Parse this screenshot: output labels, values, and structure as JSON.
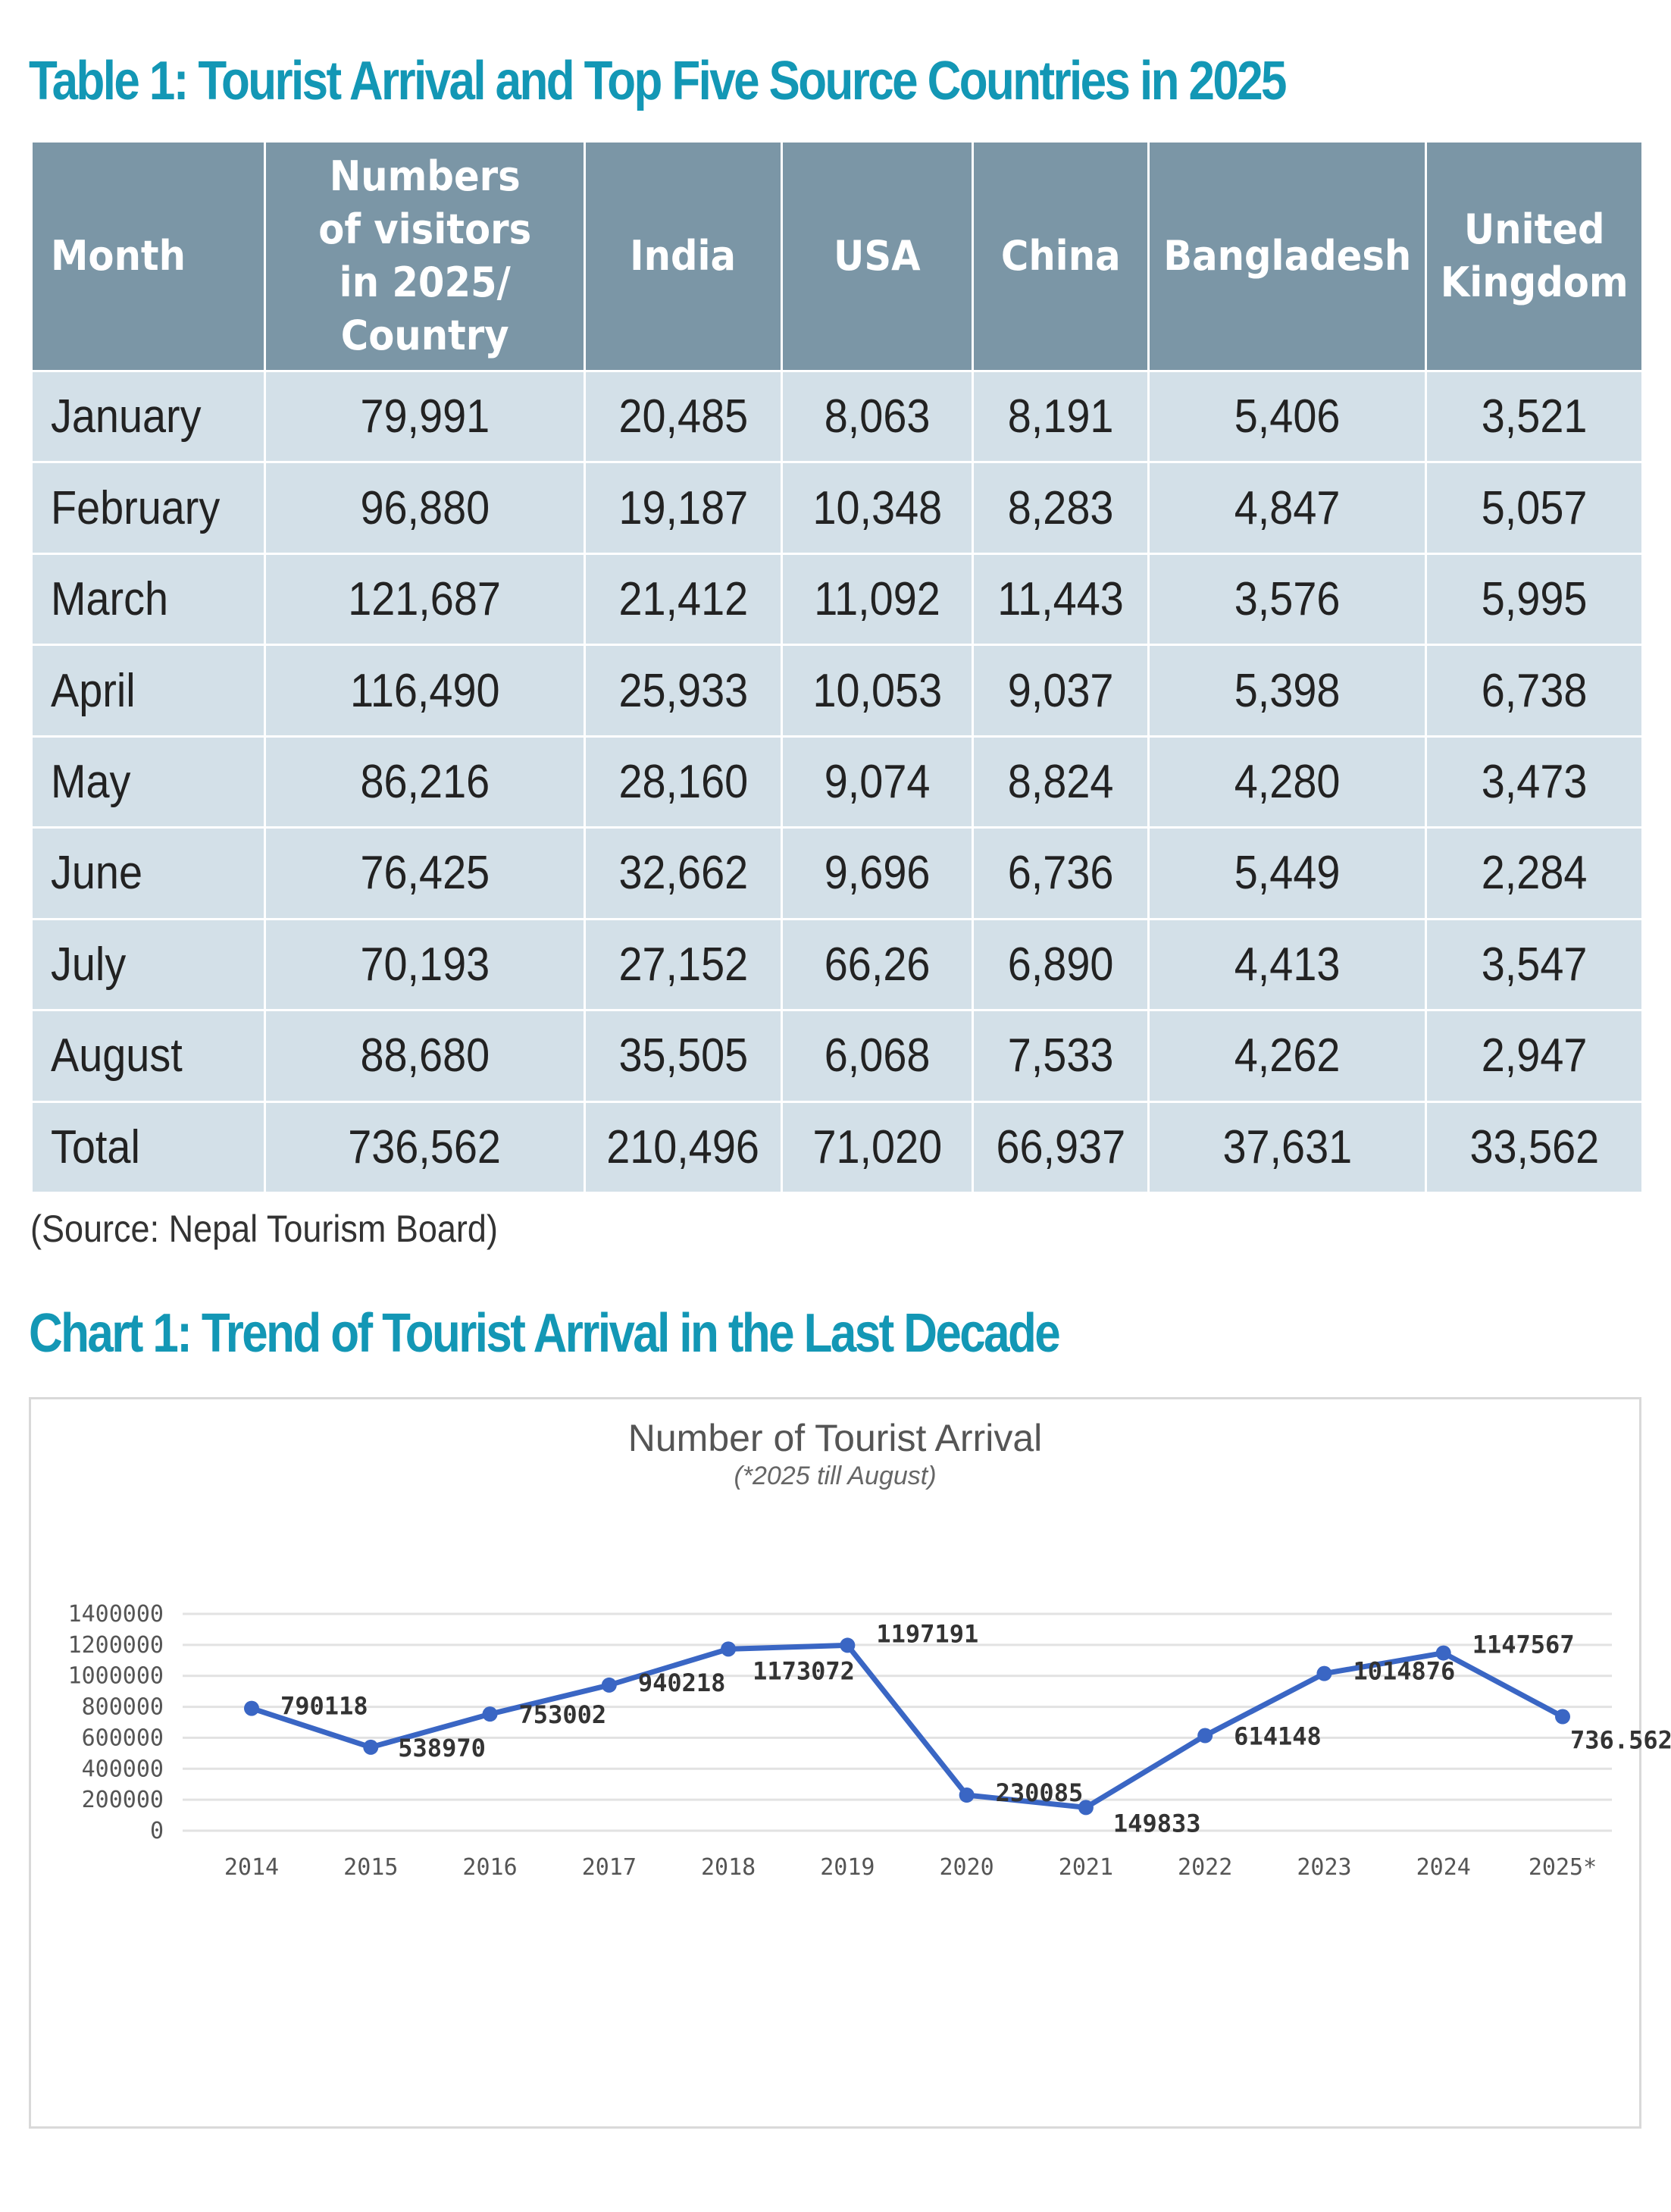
{
  "table": {
    "title": "Table 1: Tourist Arrival and Top Five Source Countries in 2025",
    "headers": [
      [
        "Month"
      ],
      [
        "Numbers",
        "of visitors",
        "in 2025/",
        "Country"
      ],
      [
        "India"
      ],
      [
        "USA"
      ],
      [
        "China"
      ],
      [
        "Bangladesh"
      ],
      [
        "United",
        "Kingdom"
      ]
    ],
    "rows": [
      [
        "January",
        "79,991",
        "20,485",
        "8,063",
        "8,191",
        "5,406",
        "3,521"
      ],
      [
        "February",
        "96,880",
        "19,187",
        "10,348",
        "8,283",
        "4,847",
        "5,057"
      ],
      [
        "March",
        "121,687",
        "21,412",
        "11,092",
        "11,443",
        "3,576",
        "5,995"
      ],
      [
        "April",
        "116,490",
        "25,933",
        "10,053",
        "9,037",
        "5,398",
        "6,738"
      ],
      [
        "May",
        "86,216",
        "28,160",
        "9,074",
        "8,824",
        "4,280",
        "3,473"
      ],
      [
        "June",
        "76,425",
        "32,662",
        "9,696",
        "6,736",
        "5,449",
        "2,284"
      ],
      [
        "July",
        "70,193",
        "27,152",
        "66,26",
        "6,890",
        "4,413",
        "3,547"
      ],
      [
        "August",
        "88,680",
        "35,505",
        "6,068",
        "7,533",
        "4,262",
        "2,947"
      ],
      [
        "Total",
        "736,562",
        "210,496",
        "71,020",
        "66,937",
        "37,631",
        "33,562"
      ]
    ],
    "source": "(Source: Nepal Tourism Board)"
  },
  "chart": {
    "section_title": "Chart 1: Trend of Tourist Arrival in the Last Decade"
  },
  "colors": {
    "title": "#1397b5",
    "header_bg": "#7b96a6",
    "cell_bg": "#d3e0e8",
    "line": "#3a66c4"
  },
  "chart_data": {
    "type": "line",
    "title": "Number of Tourist Arrival",
    "subtitle": "(*2025 till August)",
    "categories": [
      "2014",
      "2015",
      "2016",
      "2017",
      "2018",
      "2019",
      "2020",
      "2021",
      "2022",
      "2023",
      "2024",
      "2025*"
    ],
    "values": [
      790118,
      538970,
      753002,
      940218,
      1173072,
      1197191,
      230085,
      149833,
      614148,
      1014876,
      1147567,
      736562
    ],
    "data_labels": [
      "790118",
      "538970",
      "753002",
      "940218",
      "1173072",
      "1197191",
      "230085",
      "149833",
      "614148",
      "1014876",
      "1147567",
      "736.562"
    ],
    "yticks": [
      "0",
      "200000",
      "400000",
      "600000",
      "800000",
      "1000000",
      "1200000",
      "1400000"
    ],
    "ylim": [
      0,
      1400000
    ],
    "xlabel": "",
    "ylabel": "",
    "grid": true,
    "legend": "none"
  }
}
